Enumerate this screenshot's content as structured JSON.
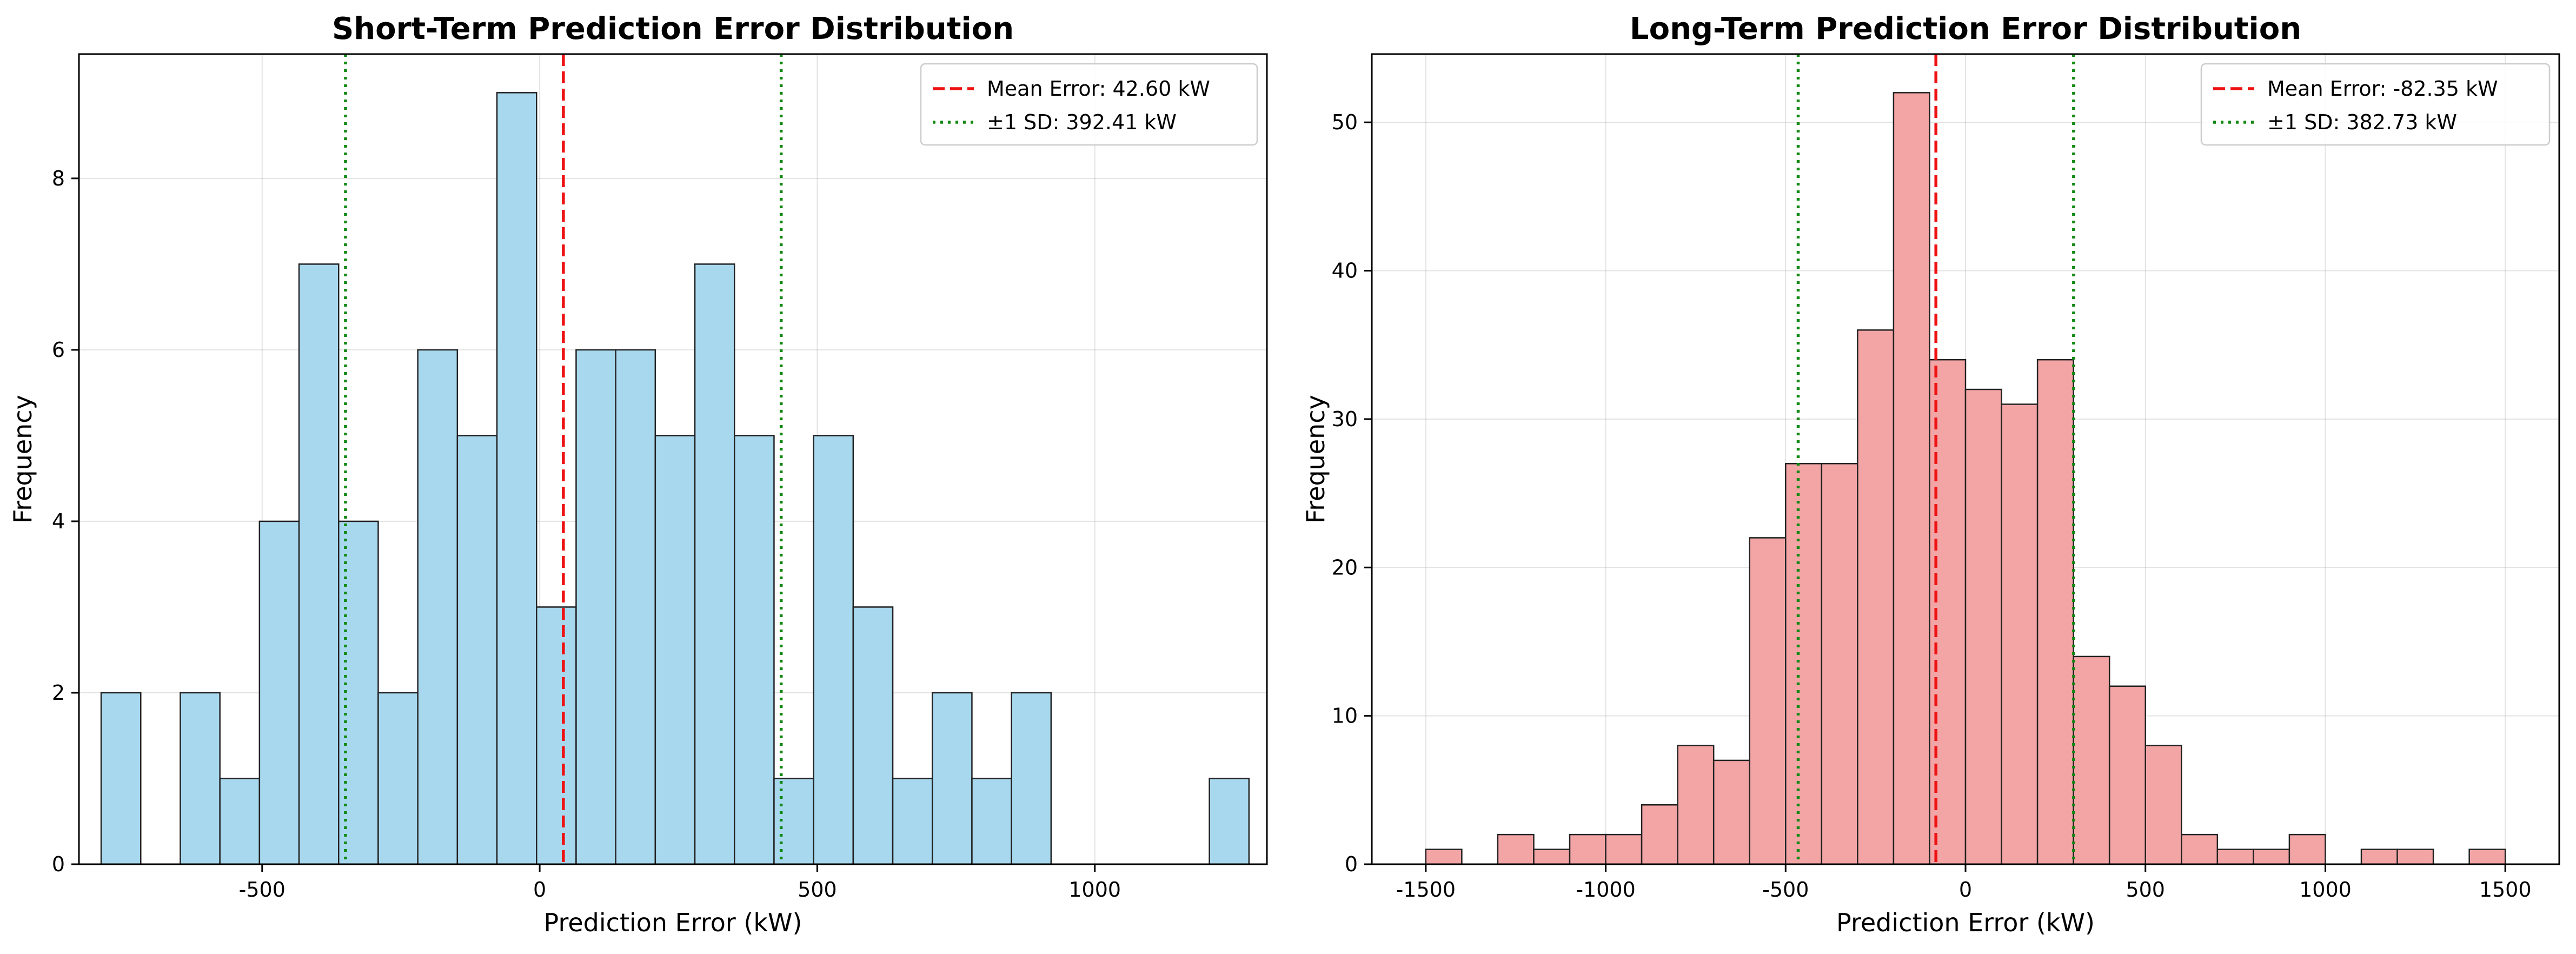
{
  "chart_data": [
    {
      "type": "bar",
      "title": "Short-Term Prediction Error Distribution",
      "xlabel": "Prediction Error (kW)",
      "ylabel": "Frequency",
      "xlim": [
        -830,
        1310
      ],
      "ylim": [
        0,
        9.45
      ],
      "xticks": [
        -500,
        0,
        500,
        1000
      ],
      "yticks": [
        0,
        2,
        4,
        6,
        8
      ],
      "bin_width": 71.3,
      "bin_edges_start": -790,
      "counts": [
        2,
        0,
        2,
        1,
        4,
        7,
        4,
        2,
        6,
        5,
        9,
        3,
        6,
        6,
        5,
        7,
        5,
        1,
        5,
        3,
        1,
        2,
        1,
        2,
        0,
        0,
        0,
        0,
        1
      ],
      "bar_color": "#a8d8ee",
      "edge_color": "#222222",
      "mean_line": {
        "value": 42.6,
        "label": "Mean Error: 42.60 kW",
        "color": "#ee1111"
      },
      "sd_lines": {
        "values": [
          -349.81,
          435.01
        ],
        "label": "±1 SD: 392.41 kW",
        "color": "#118811"
      },
      "grid": true,
      "legend": "top-right"
    },
    {
      "type": "bar",
      "title": "Long-Term Prediction Error Distribution",
      "xlabel": "Prediction Error (kW)",
      "ylabel": "Frequency",
      "xlim": [
        -1650,
        1650
      ],
      "ylim": [
        0,
        54.6
      ],
      "xticks": [
        -1500,
        -1000,
        -500,
        0,
        500,
        1000,
        1500
      ],
      "yticks": [
        0,
        10,
        20,
        30,
        40,
        50
      ],
      "bin_width": 100,
      "bin_edges_start": -1500,
      "counts": [
        1,
        0,
        2,
        1,
        2,
        2,
        4,
        8,
        7,
        22,
        27,
        27,
        36,
        52,
        34,
        32,
        31,
        34,
        14,
        12,
        8,
        2,
        1,
        1,
        2,
        0,
        1,
        1,
        0,
        1
      ],
      "bar_color": "#f3a5a6",
      "edge_color": "#222222",
      "mean_line": {
        "value": -82.35,
        "label": "Mean Error: -82.35 kW",
        "color": "#ee1111"
      },
      "sd_lines": {
        "values": [
          -465.08,
          300.38
        ],
        "label": "±1 SD: 382.73 kW",
        "color": "#118811"
      },
      "grid": true,
      "legend": "top-right"
    }
  ]
}
